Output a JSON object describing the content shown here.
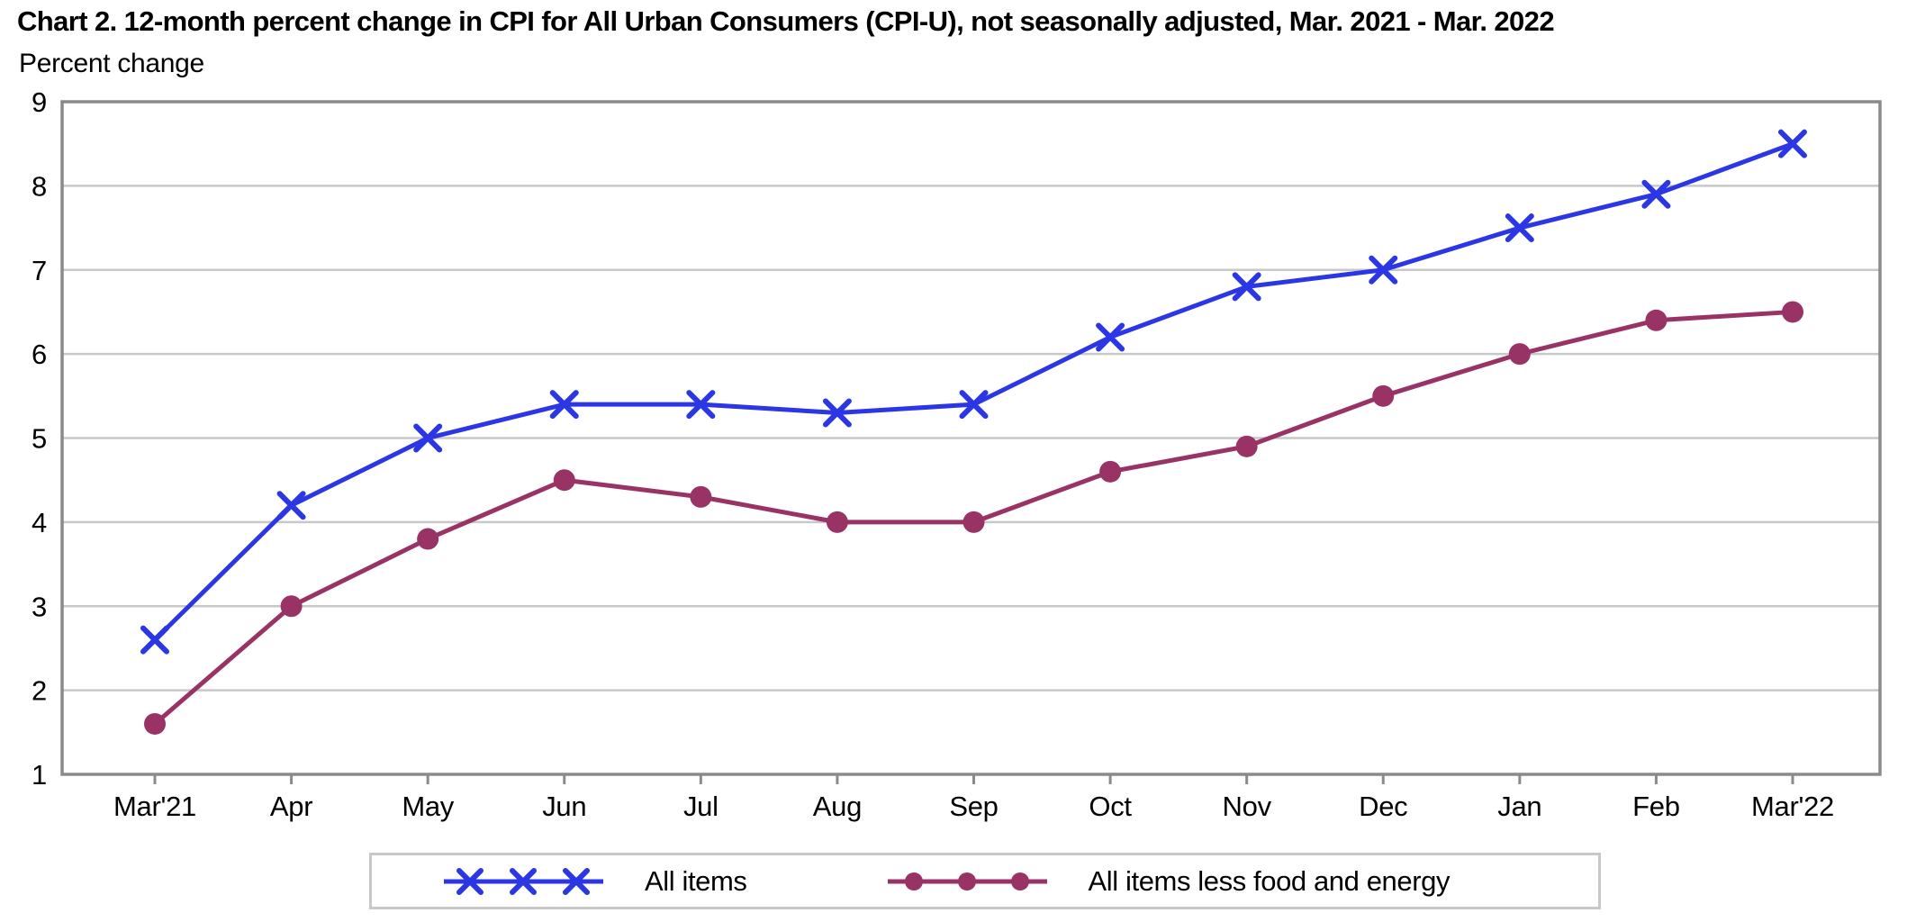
{
  "header": {
    "title": "Chart 2. 12-month percent change in CPI for All Urban Consumers (CPI-U), not seasonally adjusted, Mar. 2021 - Mar. 2022",
    "unit_label": "Percent change"
  },
  "chart_data": {
    "type": "line",
    "title": "Chart 2. 12-month percent change in CPI for All Urban Consumers (CPI-U), not seasonally adjusted, Mar. 2021 - Mar. 2022",
    "xlabel": "",
    "ylabel": "Percent change",
    "categories": [
      "Mar'21",
      "Apr",
      "May",
      "Jun",
      "Jul",
      "Aug",
      "Sep",
      "Oct",
      "Nov",
      "Dec",
      "Jan",
      "Feb",
      "Mar'22"
    ],
    "series": [
      {
        "name": "All items",
        "values": [
          2.6,
          4.2,
          5.0,
          5.4,
          5.4,
          5.3,
          5.4,
          6.2,
          6.8,
          7.0,
          7.5,
          7.9,
          8.5
        ],
        "color": "#2b36e4",
        "marker": "x"
      },
      {
        "name": "All items less food and energy",
        "values": [
          1.6,
          3.0,
          3.8,
          4.5,
          4.3,
          4.0,
          4.0,
          4.6,
          4.9,
          5.5,
          6.0,
          6.4,
          6.5
        ],
        "color": "#993366",
        "marker": "circle"
      }
    ],
    "ylim": [
      1,
      9
    ],
    "yticks": [
      1,
      2,
      3,
      4,
      5,
      6,
      7,
      8,
      9
    ],
    "grid": true,
    "legend_position": "bottom"
  },
  "colors": {
    "grid": "#c8c8c8",
    "axis": "#8a8a8a",
    "legend_border": "#c8c8c8",
    "text": "#000000",
    "background": "#ffffff"
  }
}
